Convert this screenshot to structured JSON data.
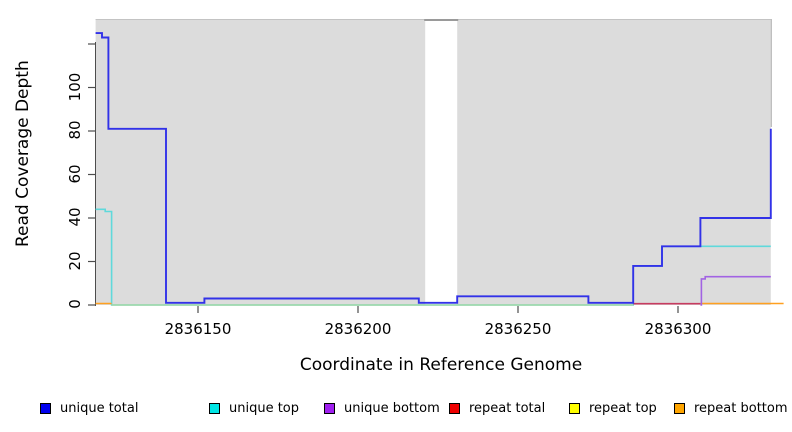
{
  "axes": {
    "x": {
      "title": "Coordinate in Reference Genome",
      "tick_labels": [
        "2836150",
        "2836200",
        "2836250",
        "2836300"
      ],
      "tick_values": [
        2836150,
        2836200,
        2836250,
        2836300
      ],
      "range": [
        2836117,
        2836334
      ]
    },
    "y": {
      "title": "Read Coverage Depth",
      "tick_labels": [
        "0",
        "20",
        "40",
        "60",
        "80",
        "100"
      ],
      "tick_values": [
        0,
        20,
        40,
        60,
        80,
        100
      ],
      "unlabeled_tick_value": 120,
      "range": [
        0,
        131
      ]
    }
  },
  "legend": [
    {
      "label": "unique total",
      "color": "#0000EE"
    },
    {
      "label": "unique top",
      "color": "#00E5E5"
    },
    {
      "label": "unique bottom",
      "color": "#A020F0"
    },
    {
      "label": "repeat total",
      "color": "#EE0000"
    },
    {
      "label": "repeat top",
      "color": "#FFFF00"
    },
    {
      "label": "repeat bottom",
      "color": "#FFA500"
    }
  ],
  "chart_data": {
    "type": "line",
    "style": "step-after",
    "xlabel": "Coordinate in Reference Genome",
    "ylabel": "Read Coverage Depth",
    "xlim": [
      2836117,
      2836334
    ],
    "ylim": [
      0,
      131
    ],
    "plot_background_color": "#DCDCDC",
    "assayed_regions": [
      {
        "start": 2836118,
        "end": 2836221
      },
      {
        "start": 2836231,
        "end": 2836329
      }
    ],
    "gap_region": {
      "start": 2836221,
      "end": 2836231
    },
    "series": [
      {
        "name": "unique top",
        "line_color": "#5FD9DB",
        "segments": [
          [
            [
              2836118,
              44
            ],
            [
              2836120.5,
              44
            ],
            [
              2836121,
              43
            ],
            [
              2836123,
              0
            ],
            [
              2836286,
              18
            ],
            [
              2836295,
              27
            ],
            [
              2836329,
              27
            ]
          ]
        ]
      },
      {
        "name": "repeat top",
        "line_color": "#A5D8A5",
        "segments": [
          [
            [
              2836123,
              0
            ],
            [
              2836286,
              0
            ]
          ]
        ]
      },
      {
        "name": "repeat total",
        "line_color": "#C73B60",
        "segments": [
          [
            [
              2836286,
              0.6
            ],
            [
              2836307,
              0.6
            ]
          ]
        ]
      },
      {
        "name": "repeat bottom",
        "line_color": "#FFA020",
        "segments": [
          [
            [
              2836118,
              0.7
            ],
            [
              2836123,
              0.7
            ]
          ],
          [
            [
              2836307,
              0.7
            ],
            [
              2836333,
              0.7
            ]
          ]
        ]
      },
      {
        "name": "unique bottom",
        "line_color": "#A263E3",
        "segments": [
          [
            [
              2836307,
              0
            ],
            [
              2836307.3,
              12
            ],
            [
              2836308.5,
              13
            ],
            [
              2836329,
              13
            ]
          ]
        ]
      },
      {
        "name": "unique total",
        "line_color": "#3232E8",
        "segments": [
          [
            [
              2836118,
              125
            ],
            [
              2836120,
              123
            ],
            [
              2836122,
              81
            ],
            [
              2836140,
              1
            ],
            [
              2836152,
              3
            ],
            [
              2836219,
              1
            ],
            [
              2836231,
              4
            ],
            [
              2836272,
              1
            ],
            [
              2836286,
              18
            ],
            [
              2836295,
              27
            ],
            [
              2836307,
              40
            ],
            [
              2836329,
              81
            ]
          ]
        ]
      }
    ]
  }
}
